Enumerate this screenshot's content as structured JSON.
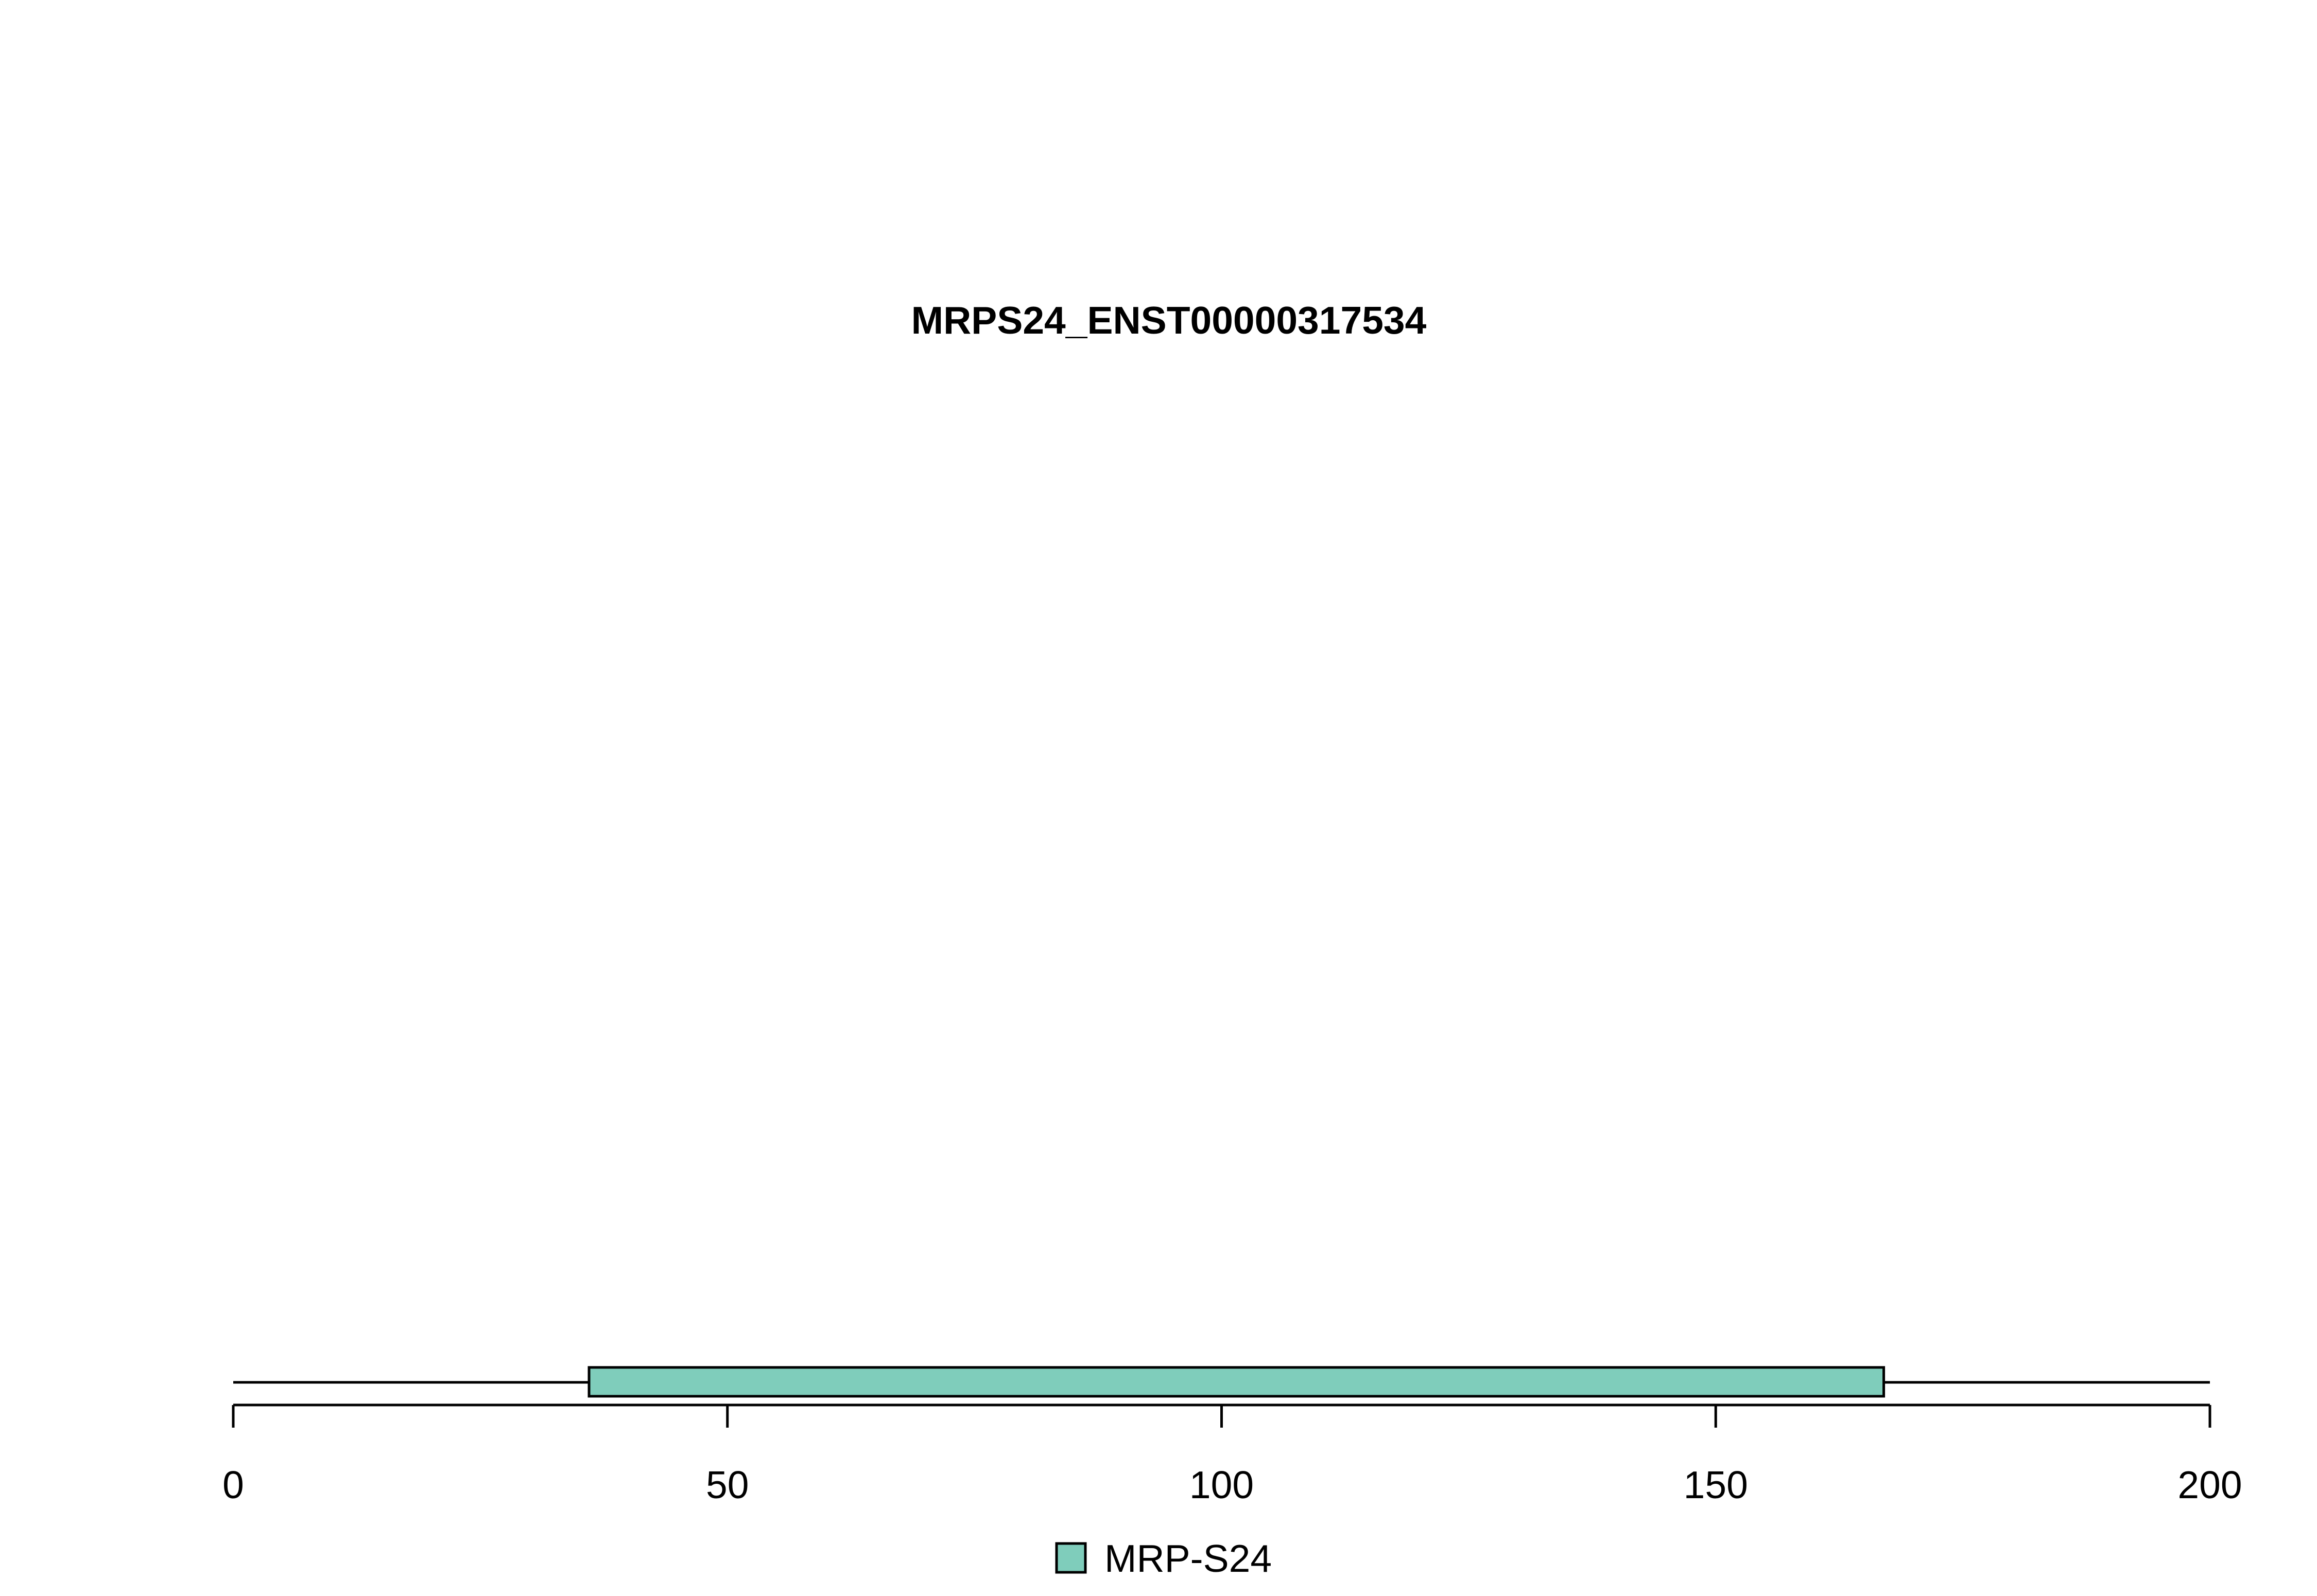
{
  "chart_data": {
    "type": "bar",
    "title": "MRPS24_ENST00000317534",
    "xlabel": "",
    "ylabel": "",
    "xlim": [
      0,
      200
    ],
    "x_ticks": [
      0,
      50,
      100,
      150,
      200
    ],
    "x_tick_labels": [
      "0",
      "50",
      "100",
      "150",
      "200"
    ],
    "protein_length": 200,
    "domains": [
      {
        "name": "MRP-S24",
        "start": 36,
        "end": 167,
        "color": "#7fcdbb"
      }
    ],
    "legend": {
      "placement": "bottom-center",
      "entries": [
        {
          "label": "MRP-S24",
          "color": "#7fcdbb"
        }
      ]
    },
    "grid": false
  }
}
